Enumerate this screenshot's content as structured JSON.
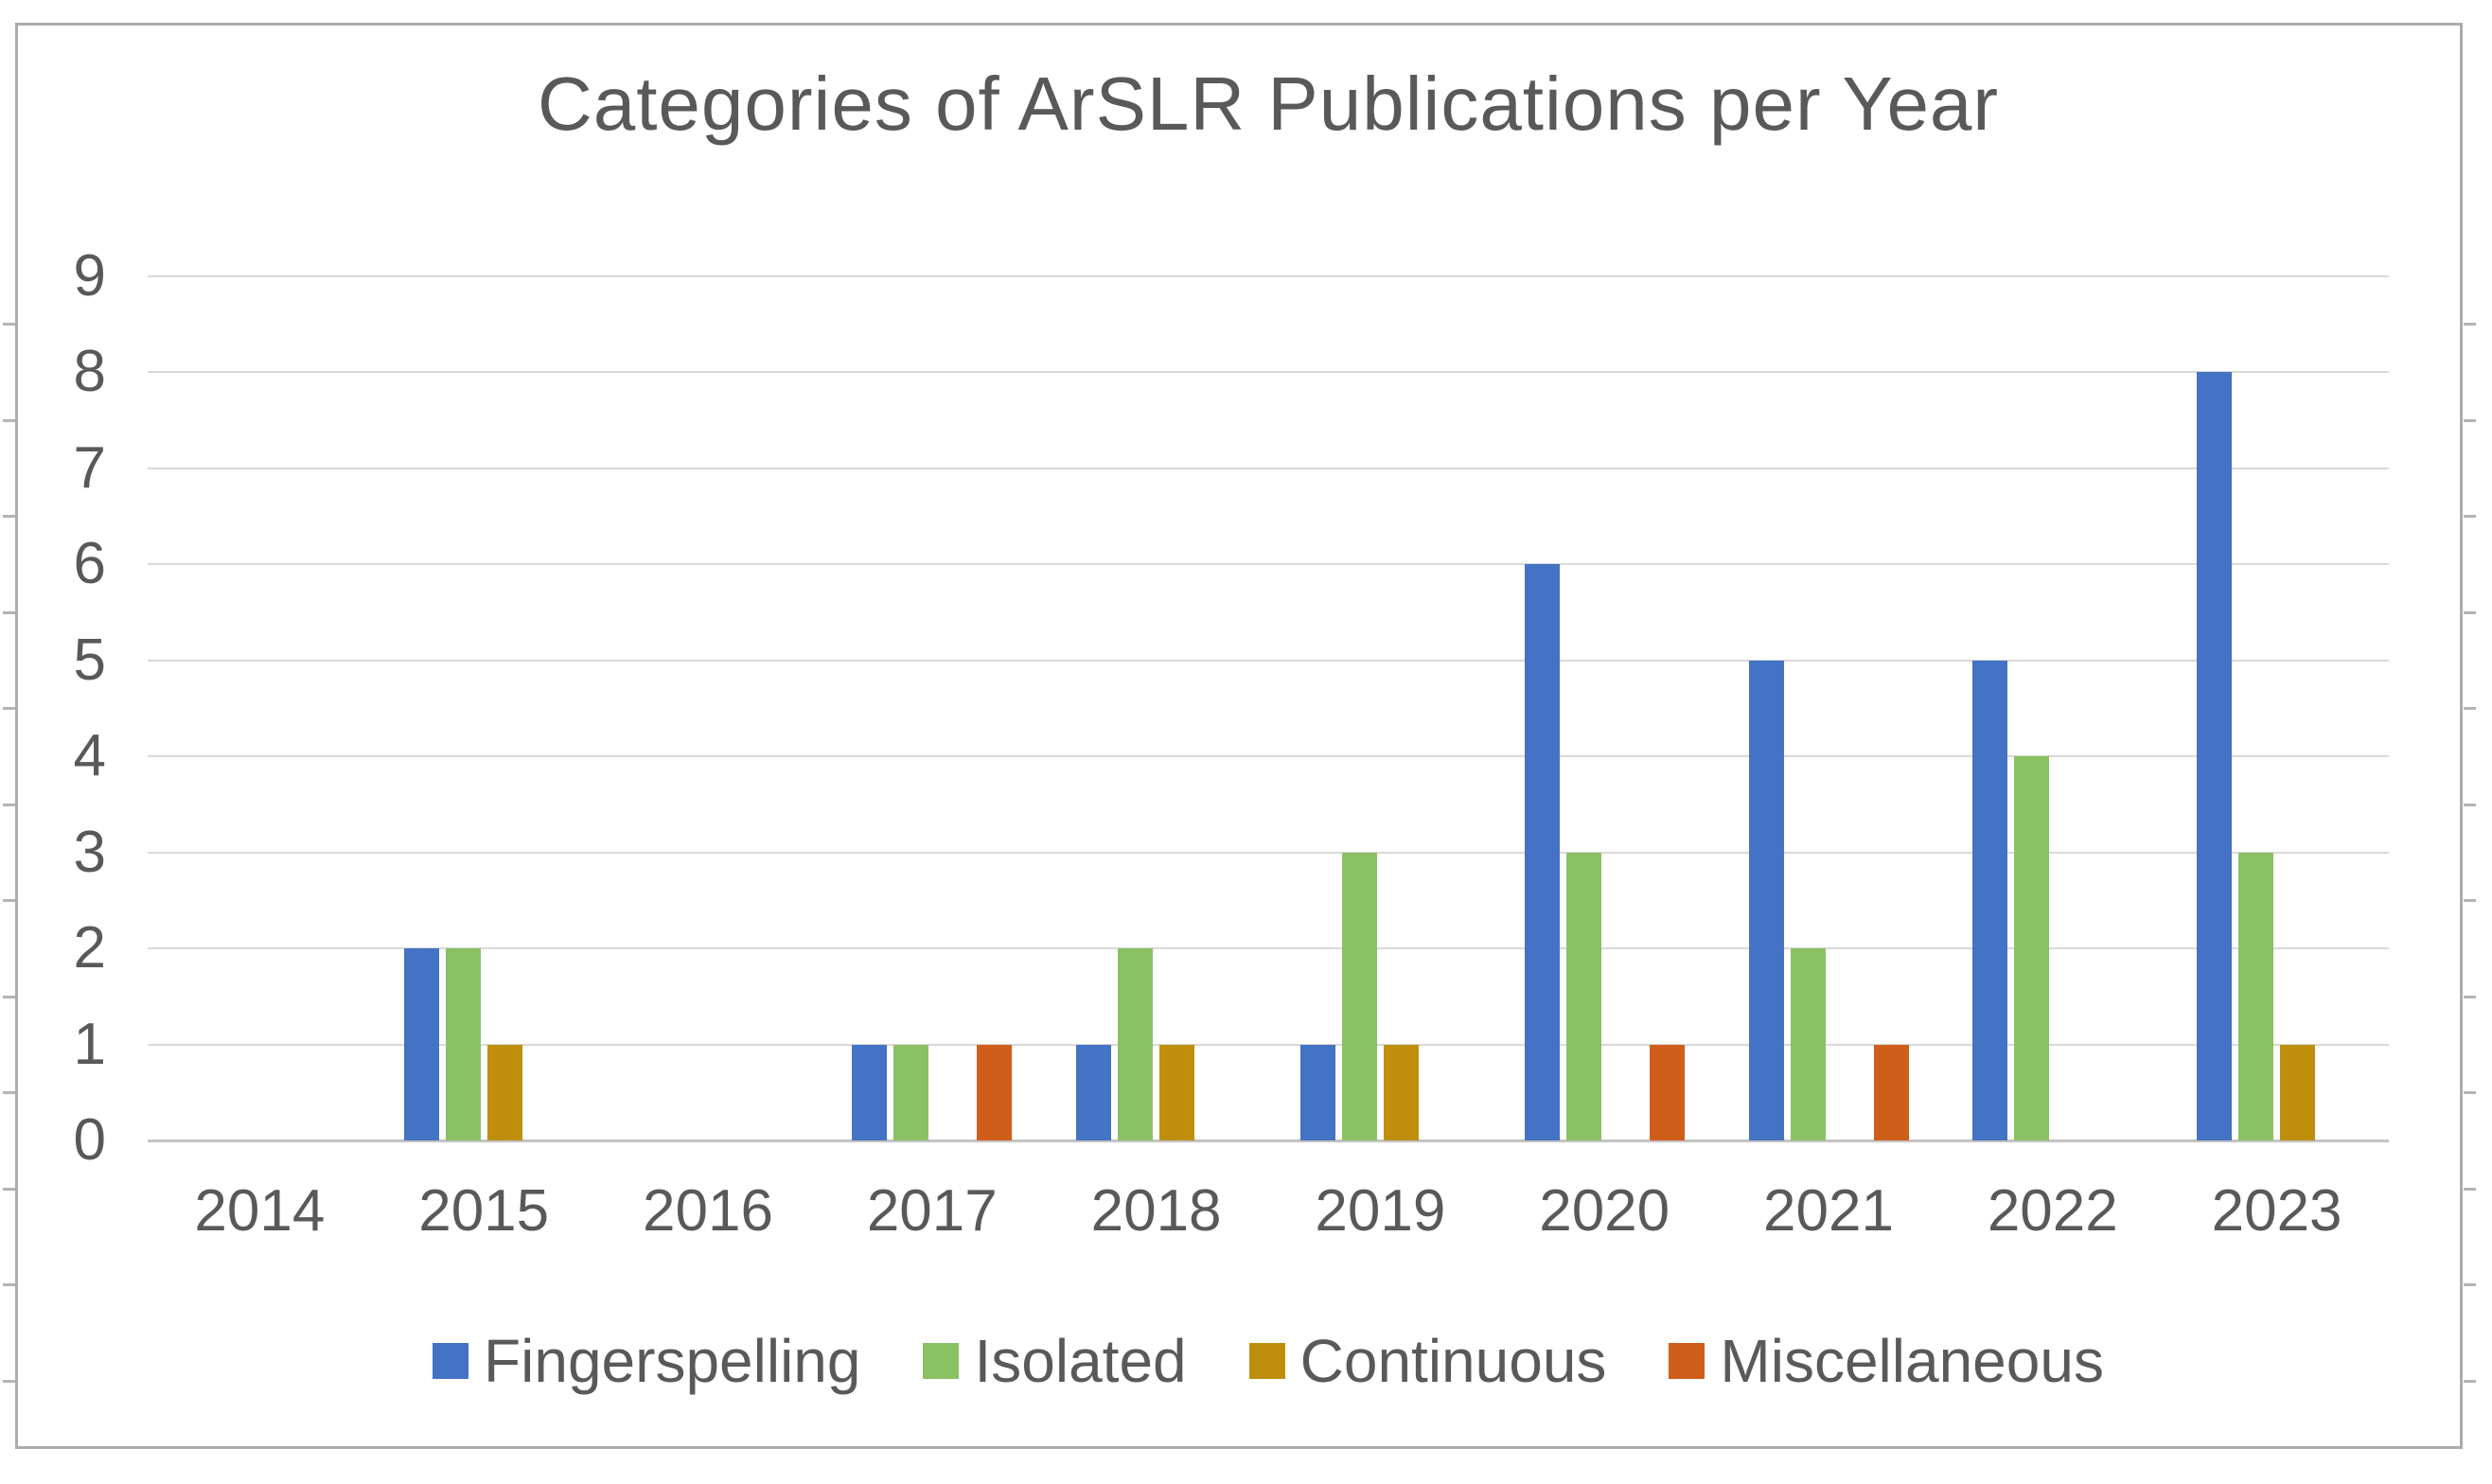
{
  "chart_data": {
    "type": "bar",
    "title": "Categories of ArSLR Publications per Year",
    "categories": [
      "2014",
      "2015",
      "2016",
      "2017",
      "2018",
      "2019",
      "2020",
      "2021",
      "2022",
      "2023"
    ],
    "series": [
      {
        "name": "Fingerspelling",
        "color": "#4472c4",
        "values": [
          0,
          2,
          0,
          1,
          1,
          1,
          6,
          5,
          5,
          8
        ]
      },
      {
        "name": "Isolated",
        "color": "#8ac162",
        "values": [
          0,
          2,
          0,
          1,
          2,
          3,
          3,
          2,
          4,
          3
        ]
      },
      {
        "name": "Continuous",
        "color": "#bf8e0b",
        "values": [
          0,
          1,
          0,
          0,
          1,
          1,
          0,
          0,
          0,
          1
        ]
      },
      {
        "name": "Miscellaneous",
        "color": "#d05e1b",
        "values": [
          0,
          0,
          0,
          1,
          0,
          0,
          1,
          1,
          0,
          0
        ]
      }
    ],
    "xlabel": "",
    "ylabel": "",
    "ylim": [
      0,
      9
    ],
    "yticks": [
      0,
      1,
      2,
      3,
      4,
      5,
      6,
      7,
      8,
      9
    ],
    "grid": true,
    "legend_position": "bottom",
    "frame_border_color": "#ababab",
    "gridline_color": "#d9d9d9",
    "text_color": "#595959",
    "background_color": "#ffffff"
  }
}
